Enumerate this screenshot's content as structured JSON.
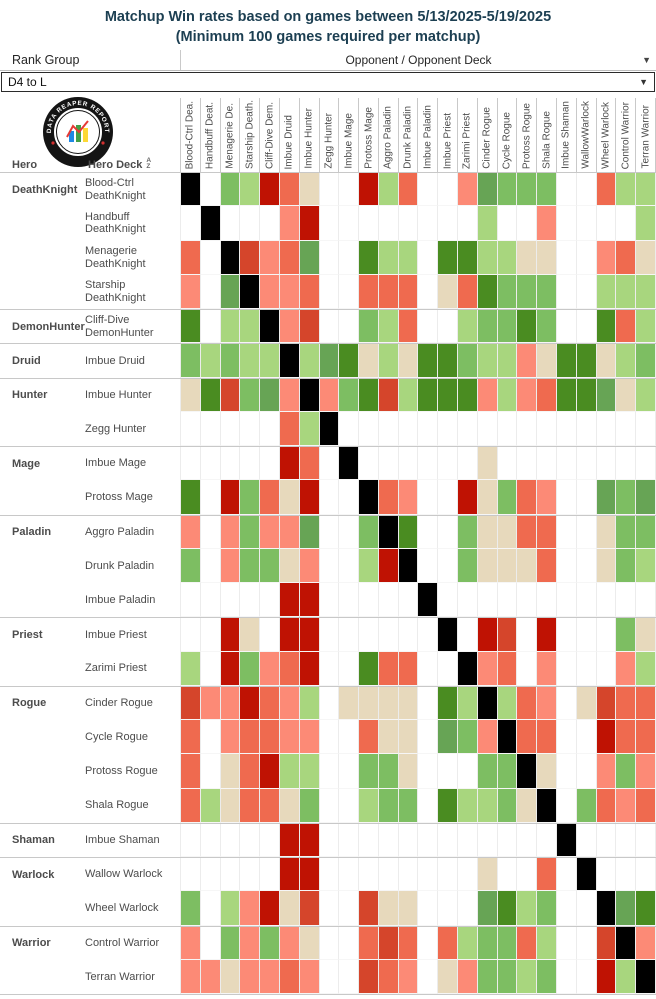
{
  "title": {
    "line1": "Matchup Win rates based on games between 5/13/2025-5/19/2025",
    "line2": "(Minimum 100 games required per matchup)"
  },
  "controls": {
    "rank_group_label": "Rank Group",
    "rank_group_value": "D4 to L",
    "opponent_header": "Opponent / Opponent Deck",
    "caret": "▼"
  },
  "logo": {
    "text": "DATA REAPER REPORT"
  },
  "axis": {
    "hero": "Hero",
    "hero_deck": "Hero Deck",
    "sort_icon_top": "A",
    "sort_icon_bottom": "Z"
  },
  "columns": [
    "Blood-Ctrl Dea.",
    "Handbuff Deat.",
    "Menagerie De.",
    "Starship Death.",
    "Cliff-Dive Dem.",
    "Imbue Druid",
    "Imbue Hunter",
    "Zegg Hunter",
    "Imbue Mage",
    "Protoss Mage",
    "Aggro Paladin",
    "Drunk Paladin",
    "Imbue Paladin",
    "Imbue Priest",
    "Zarimi Priest",
    "Cinder Rogue",
    "Cycle Rogue",
    "Protoss Rogue",
    "Shala Rogue",
    "Imbue Shaman",
    "WallowWarlock",
    "Wheel Warlock",
    "Control Warrior",
    "Terran Warrior"
  ],
  "rows": [
    {
      "hero": "DeathKnight",
      "deck": "Blood-Ctrl DeathKnight",
      "group_start": true
    },
    {
      "hero": "",
      "deck": "Handbuff DeathKnight",
      "group_start": false
    },
    {
      "hero": "",
      "deck": "Menagerie DeathKnight",
      "group_start": false
    },
    {
      "hero": "",
      "deck": "Starship DeathKnight",
      "group_start": false
    },
    {
      "hero": "DemonHunter",
      "deck": "Cliff-Dive DemonHunter",
      "group_start": true
    },
    {
      "hero": "Druid",
      "deck": "Imbue Druid",
      "group_start": true
    },
    {
      "hero": "Hunter",
      "deck": "Imbue Hunter",
      "group_start": true
    },
    {
      "hero": "",
      "deck": "Zegg Hunter",
      "group_start": false
    },
    {
      "hero": "Mage",
      "deck": "Imbue Mage",
      "group_start": true
    },
    {
      "hero": "",
      "deck": "Protoss Mage",
      "group_start": false
    },
    {
      "hero": "Paladin",
      "deck": "Aggro Paladin",
      "group_start": true
    },
    {
      "hero": "",
      "deck": "Drunk Paladin",
      "group_start": false
    },
    {
      "hero": "",
      "deck": "Imbue Paladin",
      "group_start": false
    },
    {
      "hero": "Priest",
      "deck": "Imbue Priest",
      "group_start": true
    },
    {
      "hero": "",
      "deck": "Zarimi Priest",
      "group_start": false
    },
    {
      "hero": "Rogue",
      "deck": "Cinder Rogue",
      "group_start": true
    },
    {
      "hero": "",
      "deck": "Cycle Rogue",
      "group_start": false
    },
    {
      "hero": "",
      "deck": "Protoss Rogue",
      "group_start": false
    },
    {
      "hero": "",
      "deck": "Shala Rogue",
      "group_start": false
    },
    {
      "hero": "Shaman",
      "deck": "Imbue Shaman",
      "group_start": true
    },
    {
      "hero": "Warlock",
      "deck": "Wallow Warlock",
      "group_start": true
    },
    {
      "hero": "",
      "deck": "Wheel Warlock",
      "group_start": false
    },
    {
      "hero": "Warrior",
      "deck": "Control Warrior",
      "group_start": true
    },
    {
      "hero": "",
      "deck": "Terran Warrior",
      "group_start": false
    }
  ],
  "chart_data": {
    "type": "heatmap",
    "title": "Matchup Win rates based on games between 5/13/2025-5/19/2025",
    "x_axis": "Opponent / Opponent Deck",
    "y_axis": "Hero / Hero Deck",
    "legend_position": "none",
    "palette": {
      "K": "#000000",
      "W": "#ffffff",
      "DR": "#bf1203",
      "MR": "#d5452b",
      "RO": "#ef6a4f",
      "SA": "#fc8a76",
      "BE": "#e7d9bc",
      "LG": "#a8d67e",
      "MG": "#7dbe62",
      "GG": "#67a455",
      "DG": "#4a8c21"
    },
    "color_meaning": {
      "K": "mirror matchup (diagonal)",
      "W": "fewer than 100 games / no data",
      "DR": "strongly unfavored",
      "MR": "unfavored",
      "RO": "moderately unfavored",
      "SA": "slightly unfavored",
      "BE": "even matchup (~50%)",
      "LG": "slightly favored",
      "MG": "moderately favored",
      "GG": "favored",
      "DG": "strongly favored"
    },
    "matrix": [
      [
        "K",
        "W",
        "MG",
        "LG",
        "DR",
        "RO",
        "BE",
        "W",
        "W",
        "DR",
        "LG",
        "RO",
        "W",
        "W",
        "SA",
        "GG",
        "MG",
        "MG",
        "MG",
        "W",
        "W",
        "RO",
        "LG",
        "LG"
      ],
      [
        "W",
        "K",
        "W",
        "W",
        "W",
        "SA",
        "DR",
        "W",
        "W",
        "W",
        "W",
        "W",
        "W",
        "W",
        "W",
        "LG",
        "W",
        "W",
        "SA",
        "W",
        "W",
        "W",
        "W",
        "LG"
      ],
      [
        "RO",
        "W",
        "K",
        "MR",
        "SA",
        "RO",
        "GG",
        "W",
        "W",
        "DG",
        "LG",
        "LG",
        "W",
        "DG",
        "DG",
        "LG",
        "LG",
        "BE",
        "BE",
        "W",
        "W",
        "SA",
        "RO",
        "BE"
      ],
      [
        "SA",
        "W",
        "GG",
        "K",
        "SA",
        "SA",
        "RO",
        "W",
        "W",
        "RO",
        "RO",
        "RO",
        "W",
        "BE",
        "RO",
        "DG",
        "MG",
        "MG",
        "MG",
        "W",
        "W",
        "LG",
        "LG",
        "LG"
      ],
      [
        "DG",
        "W",
        "LG",
        "LG",
        "K",
        "SA",
        "MR",
        "W",
        "W",
        "MG",
        "LG",
        "RO",
        "W",
        "W",
        "LG",
        "MG",
        "MG",
        "DG",
        "MG",
        "W",
        "W",
        "DG",
        "RO",
        "LG"
      ],
      [
        "MG",
        "LG",
        "MG",
        "LG",
        "LG",
        "K",
        "LG",
        "GG",
        "DG",
        "BE",
        "LG",
        "BE",
        "DG",
        "DG",
        "MG",
        "LG",
        "LG",
        "SA",
        "BE",
        "DG",
        "DG",
        "BE",
        "LG",
        "MG"
      ],
      [
        "BE",
        "DG",
        "MR",
        "MG",
        "GG",
        "SA",
        "K",
        "SA",
        "MG",
        "DG",
        "MR",
        "LG",
        "DG",
        "DG",
        "DG",
        "SA",
        "LG",
        "SA",
        "RO",
        "DG",
        "DG",
        "GG",
        "BE",
        "LG"
      ],
      [
        "W",
        "W",
        "W",
        "W",
        "W",
        "RO",
        "LG",
        "K",
        "W",
        "W",
        "W",
        "W",
        "W",
        "W",
        "W",
        "W",
        "W",
        "W",
        "W",
        "W",
        "W",
        "W",
        "W",
        "W"
      ],
      [
        "W",
        "W",
        "W",
        "W",
        "W",
        "DR",
        "RO",
        "W",
        "K",
        "W",
        "W",
        "W",
        "W",
        "W",
        "W",
        "BE",
        "W",
        "W",
        "W",
        "W",
        "W",
        "W",
        "W",
        "W"
      ],
      [
        "DG",
        "W",
        "DR",
        "MG",
        "RO",
        "BE",
        "DR",
        "W",
        "W",
        "K",
        "RO",
        "SA",
        "W",
        "W",
        "DR",
        "BE",
        "MG",
        "RO",
        "SA",
        "W",
        "W",
        "GG",
        "MG",
        "GG"
      ],
      [
        "SA",
        "W",
        "SA",
        "MG",
        "SA",
        "SA",
        "GG",
        "W",
        "W",
        "MG",
        "K",
        "DG",
        "W",
        "W",
        "MG",
        "BE",
        "BE",
        "RO",
        "RO",
        "W",
        "W",
        "BE",
        "MG",
        "MG"
      ],
      [
        "MG",
        "W",
        "SA",
        "MG",
        "MG",
        "BE",
        "SA",
        "W",
        "W",
        "LG",
        "DR",
        "K",
        "W",
        "W",
        "MG",
        "BE",
        "BE",
        "BE",
        "RO",
        "W",
        "W",
        "BE",
        "MG",
        "LG"
      ],
      [
        "W",
        "W",
        "W",
        "W",
        "W",
        "DR",
        "DR",
        "W",
        "W",
        "W",
        "W",
        "W",
        "K",
        "W",
        "W",
        "W",
        "W",
        "W",
        "W",
        "W",
        "W",
        "W",
        "W",
        "W"
      ],
      [
        "W",
        "W",
        "DR",
        "BE",
        "W",
        "DR",
        "DR",
        "W",
        "W",
        "W",
        "W",
        "W",
        "W",
        "K",
        "W",
        "DR",
        "MR",
        "W",
        "DR",
        "W",
        "W",
        "W",
        "MG",
        "BE"
      ],
      [
        "LG",
        "W",
        "DR",
        "MG",
        "SA",
        "RO",
        "DR",
        "W",
        "W",
        "DG",
        "RO",
        "RO",
        "W",
        "W",
        "K",
        "SA",
        "RO",
        "W",
        "SA",
        "W",
        "W",
        "W",
        "SA",
        "LG"
      ],
      [
        "MR",
        "SA",
        "SA",
        "DR",
        "RO",
        "SA",
        "LG",
        "W",
        "BE",
        "BE",
        "BE",
        "BE",
        "W",
        "DG",
        "LG",
        "K",
        "LG",
        "RO",
        "SA",
        "W",
        "BE",
        "MR",
        "RO",
        "RO"
      ],
      [
        "RO",
        "W",
        "SA",
        "RO",
        "RO",
        "SA",
        "SA",
        "W",
        "W",
        "RO",
        "BE",
        "BE",
        "W",
        "GG",
        "MG",
        "SA",
        "K",
        "RO",
        "RO",
        "W",
        "W",
        "DR",
        "RO",
        "RO"
      ],
      [
        "RO",
        "W",
        "BE",
        "RO",
        "DR",
        "LG",
        "LG",
        "W",
        "W",
        "MG",
        "MG",
        "BE",
        "W",
        "W",
        "W",
        "MG",
        "MG",
        "K",
        "BE",
        "W",
        "W",
        "SA",
        "MG",
        "SA"
      ],
      [
        "RO",
        "LG",
        "BE",
        "RO",
        "RO",
        "BE",
        "MG",
        "W",
        "W",
        "LG",
        "MG",
        "MG",
        "W",
        "DG",
        "LG",
        "LG",
        "MG",
        "BE",
        "K",
        "W",
        "MG",
        "RO",
        "SA",
        "RO"
      ],
      [
        "W",
        "W",
        "W",
        "W",
        "W",
        "DR",
        "DR",
        "W",
        "W",
        "W",
        "W",
        "W",
        "W",
        "W",
        "W",
        "W",
        "W",
        "W",
        "W",
        "K",
        "W",
        "W",
        "W",
        "W"
      ],
      [
        "W",
        "W",
        "W",
        "W",
        "W",
        "DR",
        "DR",
        "W",
        "W",
        "W",
        "W",
        "W",
        "W",
        "W",
        "W",
        "BE",
        "W",
        "W",
        "RO",
        "W",
        "K",
        "W",
        "W",
        "W"
      ],
      [
        "MG",
        "W",
        "LG",
        "SA",
        "DR",
        "BE",
        "MR",
        "W",
        "W",
        "MR",
        "BE",
        "BE",
        "W",
        "W",
        "W",
        "GG",
        "DG",
        "LG",
        "MG",
        "W",
        "W",
        "K",
        "GG",
        "DG"
      ],
      [
        "SA",
        "W",
        "MG",
        "SA",
        "MG",
        "SA",
        "BE",
        "W",
        "W",
        "RO",
        "MR",
        "RO",
        "W",
        "RO",
        "LG",
        "MG",
        "MG",
        "RO",
        "LG",
        "W",
        "W",
        "MR",
        "K",
        "SA"
      ],
      [
        "SA",
        "SA",
        "BE",
        "SA",
        "SA",
        "RO",
        "SA",
        "W",
        "W",
        "MR",
        "RO",
        "SA",
        "W",
        "BE",
        "SA",
        "MG",
        "MG",
        "LG",
        "MG",
        "W",
        "W",
        "DR",
        "LG",
        "K"
      ]
    ]
  }
}
